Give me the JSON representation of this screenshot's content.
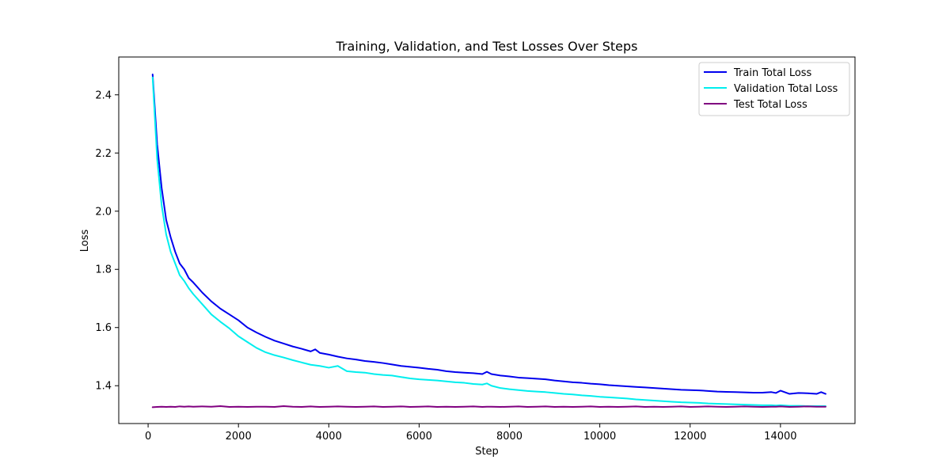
{
  "chart_data": {
    "type": "line",
    "title": "Training, Validation, and Test Losses Over Steps",
    "xlabel": "Step",
    "ylabel": "Loss",
    "xlim": [
      -650,
      15650
    ],
    "ylim": [
      1.27,
      2.53
    ],
    "xticks": [
      0,
      2000,
      4000,
      6000,
      8000,
      10000,
      12000,
      14000
    ],
    "yticks": [
      1.4,
      1.6,
      1.8,
      2.0,
      2.2,
      2.4
    ],
    "ytick_labels": [
      "1.4",
      "1.6",
      "1.8",
      "2.0",
      "2.2",
      "2.4"
    ],
    "grid": false,
    "legend_position": "top-right",
    "x": [
      100,
      200,
      300,
      400,
      500,
      600,
      700,
      800,
      900,
      1000,
      1200,
      1400,
      1600,
      1800,
      2000,
      2200,
      2400,
      2600,
      2800,
      3000,
      3200,
      3400,
      3600,
      3700,
      3800,
      4000,
      4200,
      4400,
      4600,
      4800,
      5000,
      5200,
      5400,
      5600,
      5800,
      6000,
      6200,
      6400,
      6600,
      6800,
      7000,
      7200,
      7400,
      7500,
      7600,
      7800,
      8000,
      8200,
      8400,
      8600,
      8800,
      9000,
      9200,
      9400,
      9600,
      9800,
      10000,
      10200,
      10400,
      10600,
      10800,
      11000,
      11200,
      11400,
      11600,
      11800,
      12000,
      12200,
      12400,
      12600,
      12800,
      13000,
      13200,
      13400,
      13600,
      13800,
      13900,
      14000,
      14200,
      14400,
      14600,
      14800,
      14900,
      15000
    ],
    "series": [
      {
        "name": "Train Total Loss",
        "color": "#0000ee",
        "values": [
          2.47,
          2.23,
          2.08,
          1.97,
          1.91,
          1.86,
          1.82,
          1.8,
          1.77,
          1.755,
          1.72,
          1.69,
          1.665,
          1.645,
          1.625,
          1.6,
          1.583,
          1.568,
          1.555,
          1.545,
          1.535,
          1.527,
          1.518,
          1.525,
          1.513,
          1.507,
          1.5,
          1.494,
          1.49,
          1.485,
          1.482,
          1.478,
          1.473,
          1.468,
          1.465,
          1.462,
          1.458,
          1.455,
          1.45,
          1.447,
          1.445,
          1.443,
          1.44,
          1.448,
          1.44,
          1.435,
          1.432,
          1.428,
          1.426,
          1.424,
          1.422,
          1.418,
          1.415,
          1.412,
          1.41,
          1.407,
          1.405,
          1.402,
          1.4,
          1.398,
          1.396,
          1.394,
          1.392,
          1.39,
          1.388,
          1.386,
          1.385,
          1.384,
          1.382,
          1.38,
          1.379,
          1.378,
          1.377,
          1.376,
          1.376,
          1.378,
          1.375,
          1.383,
          1.372,
          1.375,
          1.374,
          1.372,
          1.378,
          1.372
        ]
      },
      {
        "name": "Validation Total Loss",
        "color": "#00eeee",
        "values": [
          2.46,
          2.18,
          2.02,
          1.92,
          1.86,
          1.82,
          1.78,
          1.76,
          1.735,
          1.715,
          1.68,
          1.645,
          1.62,
          1.597,
          1.57,
          1.55,
          1.53,
          1.515,
          1.505,
          1.497,
          1.488,
          1.48,
          1.472,
          1.47,
          1.468,
          1.462,
          1.468,
          1.45,
          1.447,
          1.445,
          1.44,
          1.437,
          1.435,
          1.43,
          1.425,
          1.422,
          1.42,
          1.418,
          1.415,
          1.412,
          1.41,
          1.406,
          1.404,
          1.408,
          1.4,
          1.392,
          1.388,
          1.385,
          1.382,
          1.38,
          1.378,
          1.375,
          1.372,
          1.37,
          1.367,
          1.365,
          1.362,
          1.36,
          1.358,
          1.356,
          1.353,
          1.351,
          1.349,
          1.347,
          1.345,
          1.343,
          1.342,
          1.341,
          1.339,
          1.338,
          1.337,
          1.336,
          1.335,
          1.334,
          1.333,
          1.333,
          1.332,
          1.333,
          1.331,
          1.331,
          1.33,
          1.33,
          1.33,
          1.33
        ]
      },
      {
        "name": "Test Total Loss",
        "color": "#800080",
        "values": [
          1.326,
          1.327,
          1.328,
          1.327,
          1.328,
          1.327,
          1.329,
          1.328,
          1.329,
          1.328,
          1.329,
          1.328,
          1.33,
          1.327,
          1.328,
          1.327,
          1.328,
          1.328,
          1.327,
          1.33,
          1.328,
          1.327,
          1.329,
          1.328,
          1.327,
          1.328,
          1.329,
          1.328,
          1.327,
          1.328,
          1.329,
          1.327,
          1.328,
          1.329,
          1.327,
          1.328,
          1.329,
          1.327,
          1.328,
          1.327,
          1.328,
          1.329,
          1.327,
          1.328,
          1.328,
          1.327,
          1.328,
          1.329,
          1.327,
          1.328,
          1.329,
          1.327,
          1.328,
          1.327,
          1.328,
          1.329,
          1.327,
          1.328,
          1.327,
          1.328,
          1.329,
          1.327,
          1.328,
          1.327,
          1.328,
          1.329,
          1.327,
          1.328,
          1.329,
          1.328,
          1.327,
          1.328,
          1.329,
          1.328,
          1.327,
          1.328,
          1.328,
          1.329,
          1.327,
          1.328,
          1.329,
          1.328,
          1.328,
          1.328
        ]
      }
    ]
  }
}
